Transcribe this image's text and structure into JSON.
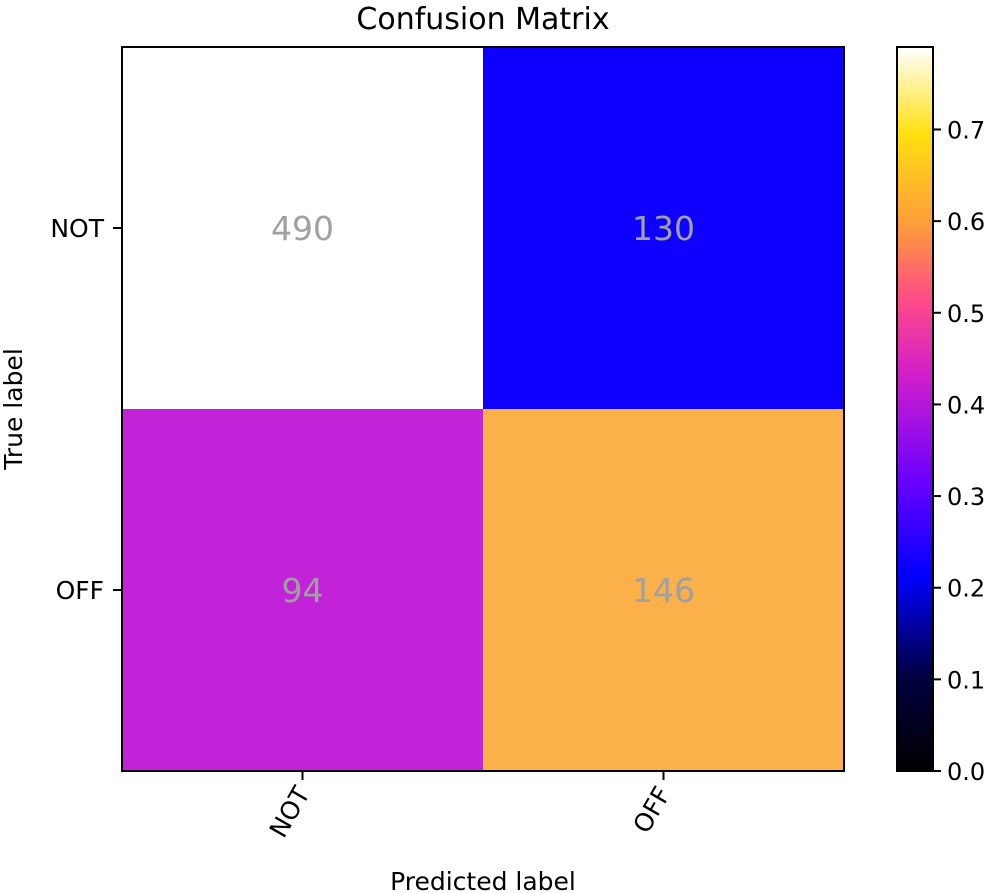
{
  "chart_data": {
    "type": "heatmap",
    "title": "Confusion Matrix",
    "xlabel": "Predicted label",
    "ylabel": "True label",
    "x_categories": [
      "NOT",
      "OFF"
    ],
    "y_categories": [
      "NOT",
      "OFF"
    ],
    "counts": [
      [
        490,
        130
      ],
      [
        94,
        146
      ]
    ],
    "normalized": [
      [
        0.79,
        0.21
      ],
      [
        0.39,
        0.61
      ]
    ],
    "colormap": "gnuplot2",
    "colorbar": {
      "range": [
        0.0,
        0.79
      ],
      "ticks": [
        0.0,
        0.1,
        0.2,
        0.3,
        0.4,
        0.5,
        0.6,
        0.7
      ],
      "tick_labels": [
        "0.0",
        "0.1",
        "0.2",
        "0.3",
        "0.4",
        "0.5",
        "0.6",
        "0.7"
      ]
    },
    "cell_colors": [
      [
        "#ffffff",
        "#0e00ff"
      ],
      [
        "#c222d8",
        "#fbb04a"
      ]
    ],
    "cell_text_color": "#a0a0a0",
    "xtick_rotation": "rotated 60 degrees"
  }
}
